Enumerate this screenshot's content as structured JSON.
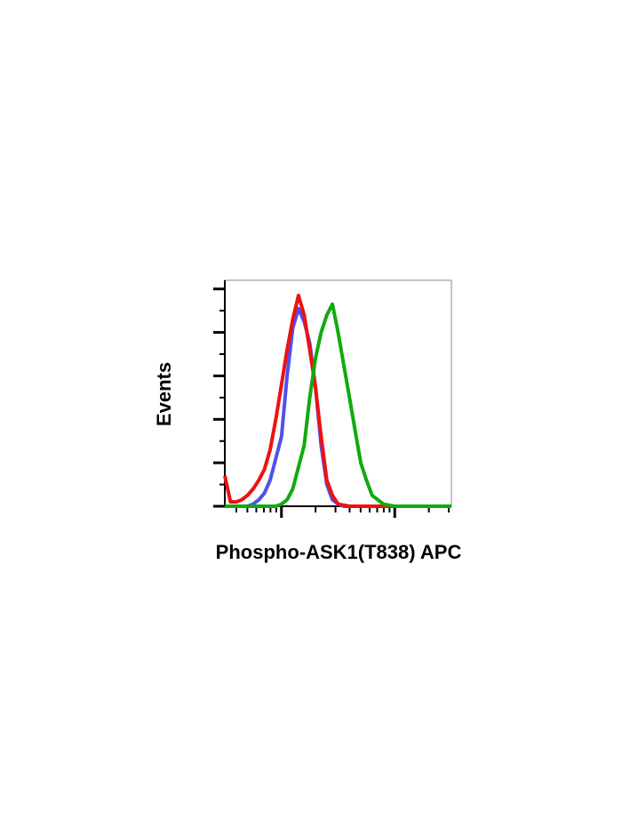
{
  "chart_data": {
    "type": "line",
    "x_label": "Phospho-ASK1(T838) APC",
    "y_label": "Events",
    "x": [
      -0.5,
      -0.45,
      -0.4,
      -0.35,
      -0.3,
      -0.25,
      -0.2,
      -0.15,
      -0.1,
      -0.05,
      0,
      0.05,
      0.1,
      0.15,
      0.2,
      0.25,
      0.3,
      0.35,
      0.4,
      0.45,
      0.5,
      0.55,
      0.6,
      0.65,
      0.7,
      0.75,
      0.8,
      0.85,
      0.9,
      0.95,
      1,
      1.05,
      1.1,
      1.15,
      1.2,
      1.25,
      1.3,
      1.35,
      1.4,
      1.45,
      1.5
    ],
    "series": [
      {
        "color": "#5050ee",
        "values": [
          0,
          0,
          0,
          0,
          0,
          1,
          3,
          6,
          12,
          22,
          32,
          60,
          82,
          91,
          85,
          75,
          55,
          28,
          10,
          3,
          1,
          0,
          0,
          0,
          0,
          0,
          0,
          0,
          0,
          0,
          0,
          0,
          0,
          0,
          0,
          0,
          0,
          0,
          0,
          0,
          0
        ]
      },
      {
        "color": "#ee1111",
        "values": [
          14,
          2,
          2,
          3,
          5,
          8,
          12,
          17,
          26,
          40,
          56,
          72,
          86,
          97,
          88,
          72,
          55,
          32,
          12,
          5,
          1,
          0.5,
          0,
          0,
          0,
          0,
          0,
          0,
          0,
          0,
          0,
          0,
          0,
          0,
          0,
          0,
          0,
          0,
          0,
          0,
          0
        ]
      },
      {
        "color": "#11aa11",
        "values": [
          0,
          0,
          0,
          0,
          0,
          0,
          0,
          0,
          0,
          0,
          1,
          3,
          8,
          18,
          28,
          50,
          68,
          80,
          88,
          93,
          80,
          65,
          50,
          35,
          20,
          12,
          5,
          3,
          1,
          0.5,
          0,
          0,
          0,
          0,
          0,
          0,
          0,
          0,
          0,
          0,
          0
        ]
      }
    ],
    "xlim": [
      -0.5,
      1.5
    ],
    "ylim": [
      0,
      104
    ],
    "xticks": [
      0,
      1
    ],
    "xminorticks": [
      -0.398,
      -0.301,
      -0.222,
      -0.155,
      -0.097,
      -0.046,
      0.301,
      0.477,
      0.602,
      0.699,
      0.778,
      0.845,
      0.903,
      0.954,
      1.301,
      1.477
    ],
    "yticks": [
      0,
      20,
      40,
      60,
      80,
      100
    ],
    "yminorticks": [
      10,
      30,
      50,
      70,
      90
    ]
  }
}
